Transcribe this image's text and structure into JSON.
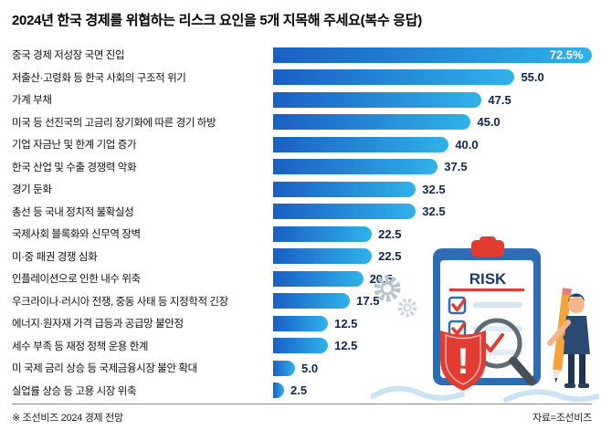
{
  "title": "2024년 한국 경제를 위협하는 리스크 요인을 5개 지목해 주세요(복수 응답)",
  "footer": {
    "left": "※ 조선비즈 2024 경제 전망",
    "right": "자료=조선비즈"
  },
  "illustration": {
    "risk_label": "RISK"
  },
  "chart_data": {
    "type": "bar",
    "orientation": "horizontal",
    "title": "2024년 한국 경제를 위협하는 리스크 요인을 5개 지목해 주세요(복수 응답)",
    "categories": [
      "중국 경제 저성장 국면 진입",
      "저출산·고령화 등 한국 사회의 구조적 위기",
      "가계 부채",
      "미국 등 선진국의 고금리 장기화에 따른 경기 하방",
      "기업 자금난 및 한계 기업 증가",
      "한국 산업 및 수출 경쟁력 악화",
      "경기 둔화",
      "총선 등 국내 정치적 불확실성",
      "국제사회 블록화와 신무역 장벽",
      "미·중 패권 경쟁 심화",
      "인플레이션으로 인한 내수 위축",
      "우크라이나·러시아 전쟁, 중동 사태 등 지정학적 긴장",
      "에너지·원자재 가격 급등과 공급망 불안정",
      "세수 부족 등 재정 정책 운용 한계",
      "미 국제 금리 상승 등 국제금융시장 불안 확대",
      "실업률 상승 등 고용 시장 위축"
    ],
    "values": [
      72.5,
      55.0,
      47.5,
      45.0,
      40.0,
      37.5,
      32.5,
      32.5,
      22.5,
      22.5,
      20.5,
      17.5,
      12.5,
      12.5,
      5.0,
      2.5
    ],
    "value_labels": [
      "72.5%",
      "55.0",
      "47.5",
      "45.0",
      "40.0",
      "37.5",
      "32.5",
      "32.5",
      "22.5",
      "22.5",
      "20.5",
      "17.5",
      "12.5",
      "12.5",
      "5.0",
      "2.5"
    ],
    "xlim": [
      0,
      73
    ],
    "grid": false,
    "legend": false,
    "bar_color_start": "#1a5fc4",
    "bar_color_end": "#2fb2e9",
    "value_text_color": "#10264d",
    "value_inside_color": "#ffffff"
  }
}
